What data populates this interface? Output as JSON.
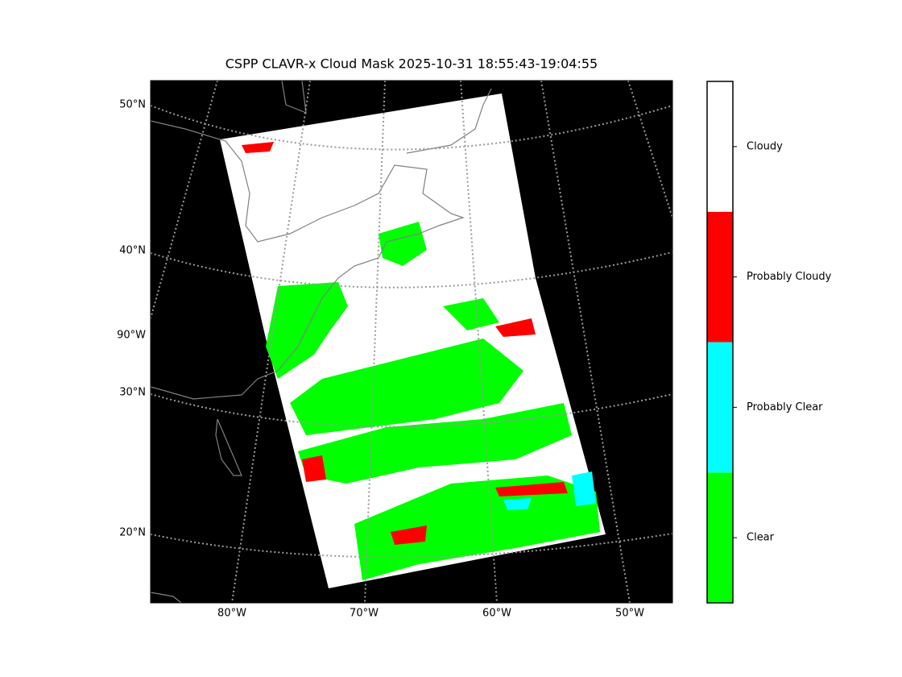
{
  "title": "CSPP CLAVR-x Cloud Mask 2025-10-31 18:55:43-19:04:55",
  "map": {
    "lat_labels": [
      "50°N",
      "40°N",
      "30°N",
      "20°N"
    ],
    "lon_labels": [
      "80°W",
      "70°W",
      "60°W",
      "50°W"
    ],
    "side_label": "90°W"
  },
  "colorbar": {
    "classes": [
      {
        "name": "Clear",
        "color": "#00ff00"
      },
      {
        "name": "Probably Clear",
        "color": "#00ffff"
      },
      {
        "name": "Probably Cloudy",
        "color": "#ff0000"
      },
      {
        "name": "Cloudy",
        "color": "#ffffff"
      }
    ]
  }
}
